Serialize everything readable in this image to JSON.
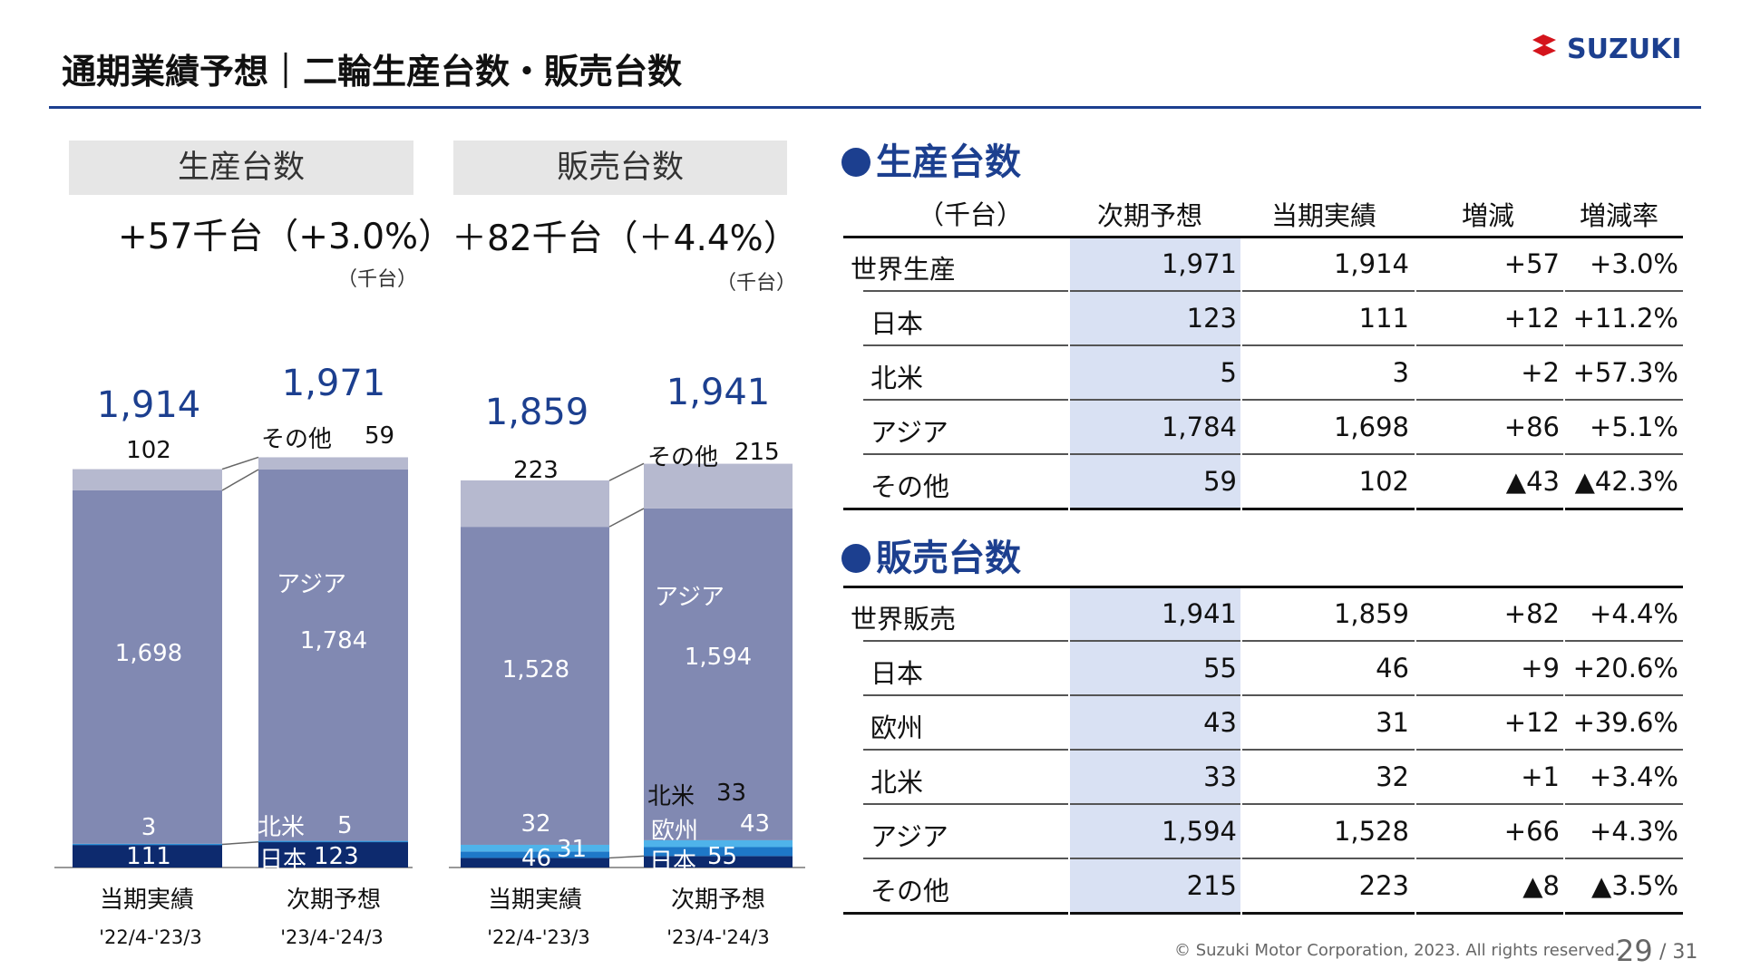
{
  "header": {
    "title": "通期業績予想｜二輪生産台数・販売台数",
    "brand": "SUZUKI",
    "brand_color": "#1c3f8f"
  },
  "production_panel": {
    "label": "生産台数",
    "delta": "+57千台（+3.0%）",
    "unit": "（千台）"
  },
  "sales_panel": {
    "label": "販売台数",
    "delta": "＋82千台（＋4.4%）",
    "unit": "（千台）"
  },
  "chart_data": [
    {
      "type": "bar",
      "stacked": true,
      "title": "生産台数",
      "unit": "千台",
      "categories": [
        "当期実績",
        "次期予想"
      ],
      "periods": [
        "'22/4-'23/3",
        "'23/4-'24/3"
      ],
      "totals": [
        1914,
        1971
      ],
      "total_labels": [
        "1,914",
        "1,971"
      ],
      "series": [
        {
          "name": "日本",
          "values": [
            111,
            123
          ],
          "labels": [
            "111",
            "123"
          ],
          "color": "#0d2a6e"
        },
        {
          "name": "北米",
          "values": [
            3,
            5
          ],
          "labels": [
            "3",
            "5"
          ],
          "color": "#2f8fd6"
        },
        {
          "name": "アジア",
          "values": [
            1698,
            1784
          ],
          "labels": [
            "1,698",
            "1,784"
          ],
          "color": "#8189b2"
        },
        {
          "name": "その他",
          "values": [
            102,
            59
          ],
          "labels": [
            "102",
            "59"
          ],
          "color": "#b6b9cf"
        }
      ],
      "series_labels": {
        "日本": "日本",
        "北米": "北米",
        "アジア": "アジア",
        "その他": "その他"
      }
    },
    {
      "type": "bar",
      "stacked": true,
      "title": "販売台数",
      "unit": "千台",
      "categories": [
        "当期実績",
        "次期予想"
      ],
      "periods": [
        "'22/4-'23/3",
        "'23/4-'24/3"
      ],
      "totals": [
        1859,
        1941
      ],
      "total_labels": [
        "1,859",
        "1,941"
      ],
      "series": [
        {
          "name": "日本",
          "values": [
            46,
            55
          ],
          "labels": [
            "46",
            "55"
          ],
          "color": "#0d2a6e"
        },
        {
          "name": "欧州",
          "values": [
            31,
            43
          ],
          "labels": [
            "31",
            "43"
          ],
          "color": "#1e78c8"
        },
        {
          "name": "北米",
          "values": [
            32,
            33
          ],
          "labels": [
            "32",
            "33"
          ],
          "color": "#4fb3ea"
        },
        {
          "name": "アジア",
          "values": [
            1528,
            1594
          ],
          "labels": [
            "1,528",
            "1,594"
          ],
          "color": "#8189b2"
        },
        {
          "name": "その他",
          "values": [
            223,
            215
          ],
          "labels": [
            "223",
            "215"
          ],
          "color": "#b6b9cf"
        }
      ],
      "series_labels": {
        "日本": "日本",
        "欧州": "欧州",
        "北米": "北米",
        "アジア": "アジア",
        "その他": "その他"
      }
    }
  ],
  "production_table": {
    "section_title": "生産台数",
    "columns": [
      "（千台）",
      "次期予想",
      "当期実績",
      "増減",
      "増減率"
    ],
    "rows": [
      [
        "世界生産",
        "1,971",
        "1,914",
        "+57",
        "+3.0%"
      ],
      [
        "日本",
        "123",
        "111",
        "+12",
        "+11.2%"
      ],
      [
        "北米",
        "5",
        "3",
        "+2",
        "+57.3%"
      ],
      [
        "アジア",
        "1,784",
        "1,698",
        "+86",
        "+5.1%"
      ],
      [
        "その他",
        "59",
        "102",
        "▲43",
        "▲42.3%"
      ]
    ]
  },
  "sales_table": {
    "section_title": "販売台数",
    "rows": [
      [
        "世界販売",
        "1,941",
        "1,859",
        "+82",
        "+4.4%"
      ],
      [
        "日本",
        "55",
        "46",
        "+9",
        "+20.6%"
      ],
      [
        "欧州",
        "43",
        "31",
        "+12",
        "+39.6%"
      ],
      [
        "北米",
        "33",
        "32",
        "+1",
        "+3.4%"
      ],
      [
        "アジア",
        "1,594",
        "1,528",
        "+66",
        "+4.3%"
      ],
      [
        "その他",
        "215",
        "223",
        "▲8",
        "▲3.5%"
      ]
    ]
  },
  "footer": {
    "copyright": "© Suzuki Motor Corporation, 2023. All rights reserved.",
    "page": "29",
    "page_total": "/ 31"
  }
}
